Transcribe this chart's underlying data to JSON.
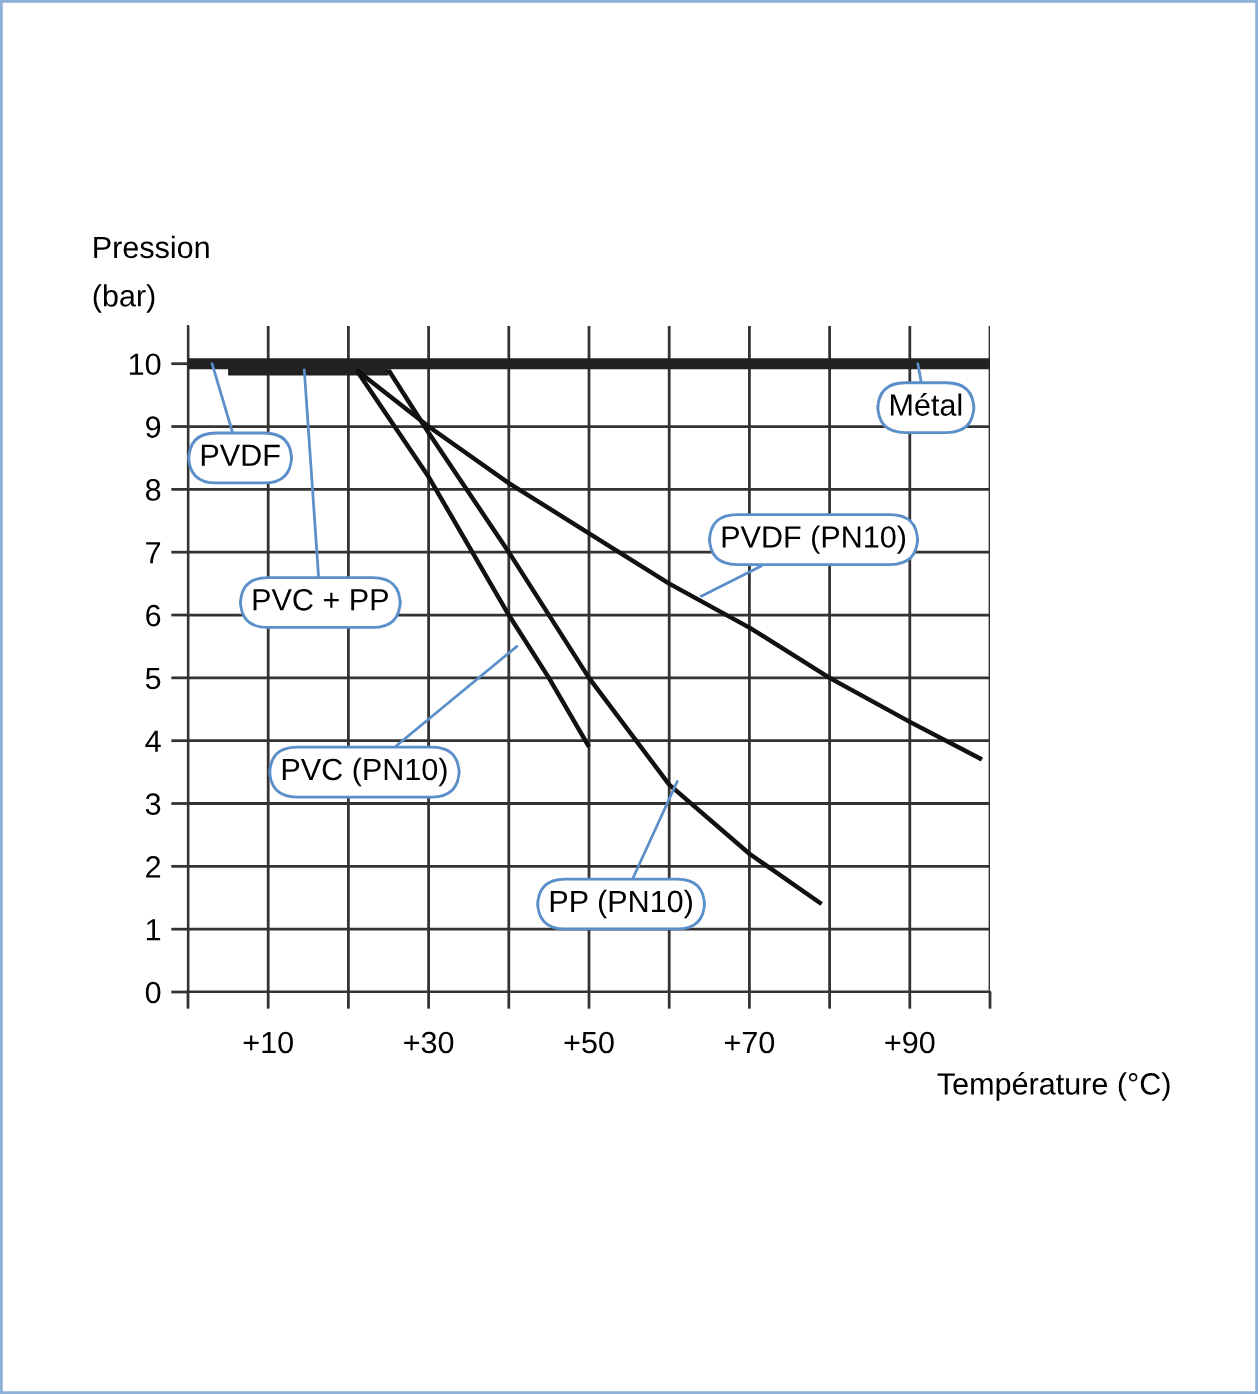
{
  "chart_data": {
    "type": "line",
    "xlabel": "Température (°C)",
    "ylabel": "Pression\n(bar)",
    "xlim": [
      0,
      100
    ],
    "ylim": [
      0,
      10.6
    ],
    "xticks": [
      {
        "value": 0,
        "label": null
      },
      {
        "value": 10,
        "label": "+10"
      },
      {
        "value": 20,
        "label": null
      },
      {
        "value": 30,
        "label": "+30"
      },
      {
        "value": 40,
        "label": null
      },
      {
        "value": 50,
        "label": "+50"
      },
      {
        "value": 60,
        "label": null
      },
      {
        "value": 70,
        "label": "+70"
      },
      {
        "value": 80,
        "label": null
      },
      {
        "value": 90,
        "label": "+90"
      },
      {
        "value": 100,
        "label": null
      }
    ],
    "yticks": [
      0,
      1,
      2,
      3,
      4,
      5,
      6,
      7,
      8,
      9,
      10
    ],
    "grid": true,
    "legend": false,
    "marker": "none",
    "line_style": "solid",
    "series": [
      {
        "color": "#222222",
        "x": [
          0,
          100
        ],
        "values": [
          10,
          10
        ]
      },
      {
        "color": "#222222",
        "x": [
          5,
          25
        ],
        "values": [
          9.9,
          9.9
        ]
      },
      {
        "color": "#111111",
        "x": [
          21,
          30,
          40,
          45,
          50
        ],
        "values": [
          9.9,
          8.2,
          6.0,
          5.0,
          3.9
        ]
      },
      {
        "color": "#111111",
        "x": [
          25,
          30,
          40,
          50,
          60,
          70,
          79
        ],
        "values": [
          9.9,
          8.9,
          7.0,
          5.0,
          3.3,
          2.2,
          1.4
        ]
      },
      {
        "color": "#111111",
        "x": [
          21,
          30,
          40,
          50,
          60,
          70,
          80,
          90,
          99
        ],
        "values": [
          9.9,
          9.0,
          8.1,
          7.3,
          6.5,
          5.8,
          5.0,
          4.3,
          3.7
        ]
      }
    ],
    "annotations": [
      {
        "text": "PVDF",
        "x": 3,
        "y": 10
      },
      {
        "text": "PVC + PP",
        "x": 14.5,
        "y": 9.9
      },
      {
        "text": "PVC (PN10)",
        "x": 41,
        "y": 5.5
      },
      {
        "text": "PP (PN10)",
        "x": 61,
        "y": 3.35
      },
      {
        "text": "PVDF (PN10)",
        "x": 64,
        "y": 6.3
      },
      {
        "text": "Métal",
        "x": 91,
        "y": 10
      }
    ]
  }
}
